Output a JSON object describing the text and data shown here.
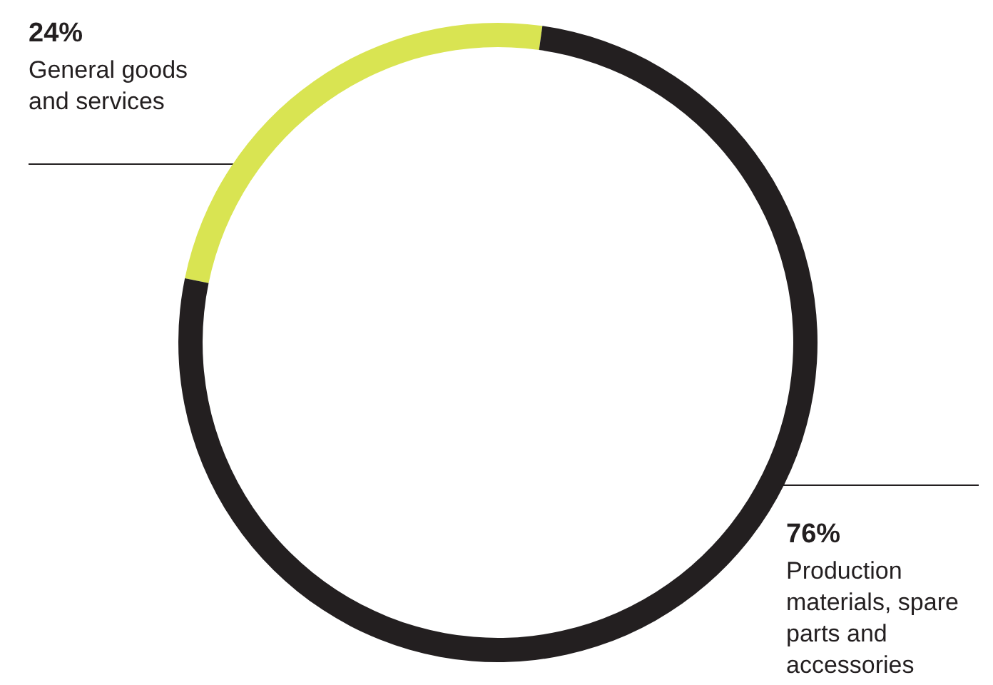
{
  "chart_data": {
    "type": "donut",
    "categories": [
      "General goods and services",
      "Production materials, spare parts and accessories"
    ],
    "values": [
      24,
      76
    ],
    "colors": [
      "#d9e452",
      "#231f20"
    ],
    "value_labels": [
      "24%",
      "76%"
    ],
    "legend": false
  }
}
